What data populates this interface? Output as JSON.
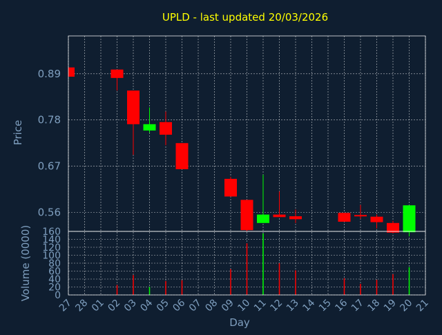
{
  "chart_data": {
    "type": "candlestick",
    "title": "UPLD - last updated 20/03/2026",
    "xlabel": "Day",
    "colors": {
      "background": "#0f1e30",
      "up": "#00ff00",
      "down": "#ff0000",
      "title": "#ffff00",
      "axis_text": "#7f9fbf",
      "grid": "#ffffff"
    },
    "days": [
      "27",
      "28",
      "01",
      "02",
      "03",
      "04",
      "05",
      "06",
      "07",
      "08",
      "09",
      "10",
      "11",
      "12",
      "13",
      "14",
      "15",
      "16",
      "17",
      "18",
      "19",
      "20",
      "21"
    ],
    "price_panel": {
      "ylabel": "Price",
      "ylim": [
        0.515,
        0.98
      ],
      "ticks": [
        0.56,
        0.67,
        0.78,
        0.89
      ],
      "tick_labels": [
        "0.56",
        "0.67",
        "0.78",
        "0.89"
      ],
      "candles": [
        {
          "day": "27",
          "open": 0.905,
          "close": 0.883,
          "high": 0.905,
          "low": 0.883
        },
        {
          "day": "02",
          "open": 0.9,
          "close": 0.88,
          "high": 0.9,
          "low": 0.85
        },
        {
          "day": "03",
          "open": 0.85,
          "close": 0.77,
          "high": 0.85,
          "low": 0.697
        },
        {
          "day": "04",
          "open": 0.755,
          "close": 0.77,
          "high": 0.81,
          "low": 0.75
        },
        {
          "day": "05",
          "open": 0.775,
          "close": 0.745,
          "high": 0.8,
          "low": 0.72
        },
        {
          "day": "06",
          "open": 0.725,
          "close": 0.663,
          "high": 0.725,
          "low": 0.663
        },
        {
          "day": "09",
          "open": 0.64,
          "close": 0.598,
          "high": 0.645,
          "low": 0.598
        },
        {
          "day": "10",
          "open": 0.59,
          "close": 0.518,
          "high": 0.59,
          "low": 0.515
        },
        {
          "day": "11",
          "open": 0.535,
          "close": 0.555,
          "high": 0.65,
          "low": 0.535
        },
        {
          "day": "12",
          "open": 0.555,
          "close": 0.549,
          "high": 0.61,
          "low": 0.549
        },
        {
          "day": "13",
          "open": 0.551,
          "close": 0.544,
          "high": 0.567,
          "low": 0.535
        },
        {
          "day": "16",
          "open": 0.559,
          "close": 0.538,
          "high": 0.559,
          "low": 0.538
        },
        {
          "day": "17",
          "open": 0.554,
          "close": 0.551,
          "high": 0.578,
          "low": 0.545
        },
        {
          "day": "18",
          "open": 0.55,
          "close": 0.537,
          "high": 0.555,
          "low": 0.522
        },
        {
          "day": "19",
          "open": 0.535,
          "close": 0.512,
          "high": 0.54,
          "low": 0.51
        },
        {
          "day": "20",
          "open": 0.513,
          "close": 0.577,
          "high": 0.577,
          "low": 0.503
        }
      ]
    },
    "volume_panel": {
      "ylabel": "Volume (0000)",
      "ylim": [
        0,
        160
      ],
      "ticks": [
        0,
        20,
        40,
        60,
        80,
        100,
        120,
        140,
        160
      ],
      "tick_labels": [
        "0",
        "20",
        "40",
        "60",
        "80",
        "100",
        "120",
        "140",
        "160"
      ],
      "bars": [
        {
          "day": "02",
          "value": 25,
          "dir": "down"
        },
        {
          "day": "03",
          "value": 50,
          "dir": "down"
        },
        {
          "day": "04",
          "value": 20,
          "dir": "up"
        },
        {
          "day": "05",
          "value": 35,
          "dir": "down"
        },
        {
          "day": "06",
          "value": 37,
          "dir": "down"
        },
        {
          "day": "09",
          "value": 65,
          "dir": "down"
        },
        {
          "day": "10",
          "value": 130,
          "dir": "down"
        },
        {
          "day": "11",
          "value": 155,
          "dir": "up"
        },
        {
          "day": "12",
          "value": 80,
          "dir": "down"
        },
        {
          "day": "13",
          "value": 62,
          "dir": "down"
        },
        {
          "day": "16",
          "value": 42,
          "dir": "down"
        },
        {
          "day": "17",
          "value": 28,
          "dir": "down"
        },
        {
          "day": "18",
          "value": 38,
          "dir": "down"
        },
        {
          "day": "19",
          "value": 52,
          "dir": "down"
        },
        {
          "day": "20",
          "value": 70,
          "dir": "up"
        }
      ]
    }
  }
}
